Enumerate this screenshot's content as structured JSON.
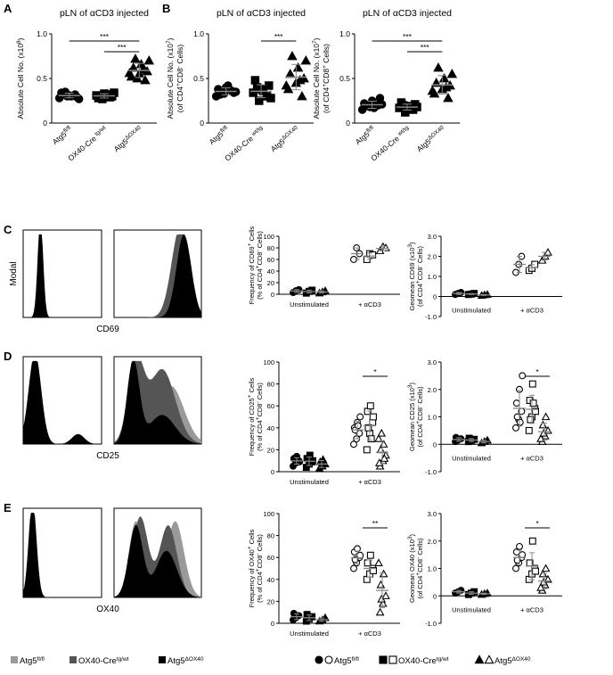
{
  "panels": [
    {
      "letter": "A"
    },
    {
      "letter": "B"
    },
    {
      "letter": "C"
    },
    {
      "letter": "D"
    },
    {
      "letter": "E"
    }
  ],
  "colors": {
    "fl_fl": "#000000",
    "ox40_cre": "#555555",
    "atg5_dox40": "#9a9a9a"
  },
  "icons": {
    "circle_filled": "●",
    "circle_open": "○",
    "square_filled": "■",
    "square_open": "□",
    "triangle_filled": "▲",
    "triangle_open": "△"
  },
  "legend_hist": [
    {
      "label": "Atg5",
      "sup": "fl/fl",
      "color": "#9a9a9a"
    },
    {
      "label": "OX40-Cre",
      "sup": "tg/wt",
      "color": "#555555"
    },
    {
      "label": "Atg5",
      "sup": "ΔOX40",
      "color": "#000000"
    }
  ],
  "legend_dots": [
    {
      "label": "Atg5",
      "sup": "fl/fl"
    },
    {
      "label": "OX40-Cre",
      "sup": "tg/wt"
    },
    {
      "label": "Atg5",
      "sup": "ΔOX40"
    }
  ],
  "histograms": [
    {
      "row": "C",
      "ylabel": "Modal",
      "xlabel": "CD69"
    },
    {
      "row": "D",
      "ylabel": "",
      "xlabel": "CD25"
    },
    {
      "row": "E",
      "ylabel": "",
      "xlabel": "OX40"
    }
  ],
  "chart_data": [
    {
      "id": "A",
      "type": "scatter",
      "title": "pLN of αCD3 injected",
      "ylabel": "Absolute Cell No. (x10^8)",
      "ylim": [
        0,
        1.0
      ],
      "yticks": [
        "0",
        "0.5",
        "1.0"
      ],
      "categories": [
        "Atg5fl/fl",
        "OX40-Cre tg/wt",
        "Atg5ΔOX40"
      ],
      "series": [
        {
          "values": [
            0.28,
            0.3,
            0.32,
            0.34,
            0.31,
            0.29,
            0.33,
            0.3,
            0.27,
            0.35
          ]
        },
        {
          "values": [
            0.27,
            0.29,
            0.31,
            0.33,
            0.3,
            0.28,
            0.32,
            0.34
          ]
        },
        {
          "values": [
            0.48,
            0.52,
            0.55,
            0.58,
            0.62,
            0.66,
            0.7,
            0.72,
            0.6,
            0.56,
            0.5
          ]
        }
      ],
      "sig": [
        {
          "text": "***"
        },
        {
          "text": "***"
        }
      ]
    },
    {
      "id": "B1",
      "type": "scatter",
      "title": "pLN of αCD3 injected",
      "ylabel": "Absolute Cell No. (x10^7) (of CD4+CD8- Cells)",
      "ylim": [
        0,
        1.0
      ],
      "yticks": [
        "0",
        "0.5",
        "1.0"
      ],
      "categories": [
        "Atg5fl/fl",
        "OX40-Cre wt/tg",
        "Atg5ΔOX40"
      ],
      "series": [
        {
          "values": [
            0.3,
            0.33,
            0.36,
            0.38,
            0.4,
            0.34,
            0.32,
            0.42,
            0.35
          ]
        },
        {
          "values": [
            0.25,
            0.3,
            0.34,
            0.38,
            0.42,
            0.48,
            0.36,
            0.28,
            0.4
          ]
        },
        {
          "values": [
            0.3,
            0.38,
            0.45,
            0.5,
            0.55,
            0.62,
            0.7,
            0.75,
            0.48,
            0.42
          ]
        }
      ],
      "sig": [
        {
          "text": "***"
        }
      ]
    },
    {
      "id": "B2",
      "type": "scatter",
      "title": "pLN of αCD3 injected",
      "ylabel": "Absolute Cell No. (x10^7) (of CD4+CD8+ Cells)",
      "ylim": [
        0,
        1.0
      ],
      "yticks": [
        "0",
        "0.5",
        "1.0"
      ],
      "categories": [
        "Atg5fl/fl",
        "OX40-Cre wt/tg",
        "Atg5ΔOX40"
      ],
      "series": [
        {
          "values": [
            0.15,
            0.18,
            0.2,
            0.22,
            0.25,
            0.28,
            0.19,
            0.17,
            0.21
          ]
        },
        {
          "values": [
            0.12,
            0.15,
            0.17,
            0.19,
            0.21,
            0.23,
            0.16,
            0.18,
            0.2
          ]
        },
        {
          "values": [
            0.28,
            0.33,
            0.38,
            0.42,
            0.45,
            0.5,
            0.55,
            0.62,
            0.4,
            0.36
          ]
        }
      ],
      "sig": [
        {
          "text": "***"
        },
        {
          "text": "***"
        }
      ]
    },
    {
      "id": "C1",
      "type": "scatter",
      "ylabel": "Frequency of CD69+ Cells (% of CD4+CD8- Cells)",
      "ylim": [
        0,
        100
      ],
      "yticks": [
        "0",
        "20",
        "40",
        "60",
        "80",
        "100"
      ],
      "groups": [
        "Unstimulated",
        "+ αCD3"
      ],
      "series": [
        {
          "values": [
            [
              3,
              6,
              8
            ],
            [
              60,
              80,
              70
            ]
          ]
        },
        {
          "values": [
            [
              2,
              5,
              7
            ],
            [
              60,
              70,
              68
            ]
          ]
        },
        {
          "values": [
            [
              2,
              4,
              6
            ],
            [
              75,
              82,
              80
            ]
          ]
        }
      ],
      "sig": []
    },
    {
      "id": "C2",
      "type": "scatter",
      "ylabel": "Geomean CD69 (x10^3) (of CD4+CD8- Cells)",
      "ylim": [
        -1.0,
        3.0
      ],
      "yticks": [
        "-1.0",
        "0",
        "1.0",
        "2.0",
        "3.0"
      ],
      "groups": [
        "Unstimulated",
        "+ αCD3"
      ],
      "series": [
        {
          "values": [
            [
              0.1,
              0.15,
              0.2
            ],
            [
              1.2,
              1.6,
              2.0
            ]
          ]
        },
        {
          "values": [
            [
              0.1,
              0.12,
              0.15
            ],
            [
              1.3,
              1.4,
              1.6
            ]
          ]
        },
        {
          "values": [
            [
              0.05,
              0.08,
              0.1
            ],
            [
              1.8,
              2.0,
              2.2
            ]
          ]
        }
      ],
      "sig": []
    },
    {
      "id": "D1",
      "type": "scatter",
      "ylabel": "Frequency of CD25+ Cells (% of CD4+CD8- Cells)",
      "ylim": [
        0,
        100
      ],
      "yticks": [
        "0",
        "20",
        "40",
        "60",
        "80",
        "100"
      ],
      "groups": [
        "Unstimulated",
        "+ αCD3"
      ],
      "series": [
        {
          "values": [
            [
              5,
              8,
              10,
              12,
              14,
              9,
              11
            ],
            [
              25,
              30,
              35,
              40,
              45,
              50,
              38,
              42
            ]
          ]
        },
        {
          "values": [
            [
              4,
              7,
              9,
              12,
              15,
              10
            ],
            [
              20,
              35,
              45,
              55,
              60,
              50,
              40,
              30
            ]
          ]
        },
        {
          "values": [
            [
              3,
              5,
              7,
              9,
              11
            ],
            [
              5,
              10,
              15,
              20,
              25,
              30,
              35,
              12,
              8
            ]
          ]
        }
      ],
      "sig": [
        {
          "text": "*"
        }
      ]
    },
    {
      "id": "D2",
      "type": "scatter",
      "ylabel": "Geomean CD25 (x10^3) (of CD4+CD8- Cells)",
      "ylim": [
        -1.0,
        3.0
      ],
      "yticks": [
        "-1.0",
        "0",
        "1.0",
        "2.0",
        "3.0"
      ],
      "groups": [
        "Unstimulated",
        "+ αCD3"
      ],
      "series": [
        {
          "values": [
            [
              0.1,
              0.15,
              0.2,
              0.25
            ],
            [
              0.6,
              0.9,
              1.2,
              1.5,
              2.0,
              2.5,
              1.0,
              0.8
            ]
          ]
        },
        {
          "values": [
            [
              0.1,
              0.12,
              0.18,
              0.22
            ],
            [
              0.5,
              1.0,
              1.3,
              1.6,
              2.2,
              1.2,
              0.9,
              1.5
            ]
          ]
        },
        {
          "values": [
            [
              0.05,
              0.1,
              0.15
            ],
            [
              0.1,
              0.3,
              0.5,
              0.7,
              1.0,
              0.2,
              0.4
            ]
          ]
        }
      ],
      "sig": [
        {
          "text": "*"
        }
      ]
    },
    {
      "id": "E1",
      "type": "scatter",
      "ylabel": "Frequency of OX40+ Cells (% of CD4+CD8- Cells)",
      "ylim": [
        0,
        100
      ],
      "yticks": [
        "0",
        "20",
        "40",
        "60",
        "80",
        "100"
      ],
      "groups": [
        "Unstimulated",
        "+ αCD3"
      ],
      "series": [
        {
          "values": [
            [
              3,
              5,
              7,
              9
            ],
            [
              50,
              55,
              60,
              65,
              68,
              62,
              58
            ]
          ]
        },
        {
          "values": [
            [
              2,
              4,
              6,
              8
            ],
            [
              40,
              45,
              50,
              55,
              62,
              48
            ]
          ]
        },
        {
          "values": [
            [
              2,
              3,
              5
            ],
            [
              10,
              18,
              25,
              35,
              45,
              55,
              22
            ]
          ]
        }
      ],
      "sig": [
        {
          "text": "**"
        }
      ]
    },
    {
      "id": "E2",
      "type": "scatter",
      "ylabel": "Geomean OX40 (x10^3) (of CD4+CD8- Cells)",
      "ylim": [
        -1.0,
        3.0
      ],
      "yticks": [
        "-1.0",
        "0",
        "1.0",
        "2.0",
        "3.0"
      ],
      "groups": [
        "Unstimulated",
        "+ αCD3"
      ],
      "series": [
        {
          "values": [
            [
              0.1,
              0.15,
              0.2
            ],
            [
              1.0,
              1.2,
              1.4,
              1.6,
              1.8,
              1.5,
              1.3
            ]
          ]
        },
        {
          "values": [
            [
              0.05,
              0.1,
              0.15
            ],
            [
              0.6,
              0.8,
              1.0,
              1.2,
              2.0,
              0.9
            ]
          ]
        },
        {
          "values": [
            [
              0.05,
              0.08,
              0.1
            ],
            [
              0.2,
              0.4,
              0.6,
              0.8,
              1.0,
              0.3,
              0.5
            ]
          ]
        }
      ],
      "sig": [
        {
          "text": "*"
        }
      ]
    }
  ]
}
